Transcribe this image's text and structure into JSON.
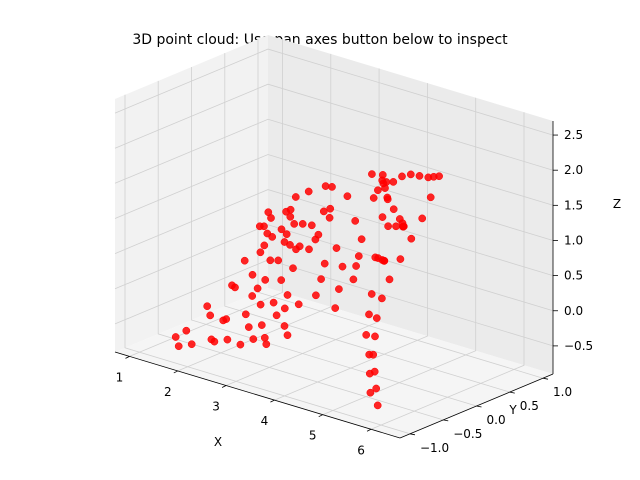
{
  "chart_data": {
    "type": "scatter",
    "title": "3D point cloud: Use pan axes button below to inspect",
    "xlabel": "X",
    "ylabel": "Y",
    "zlabel": "Z",
    "xlim": [
      0.7,
      6.6
    ],
    "ylim": [
      -1.15,
      1.15
    ],
    "zlim": [
      -0.9,
      2.7
    ],
    "x_ticks": [
      "1",
      "2",
      "3",
      "4",
      "5",
      "6"
    ],
    "y_ticks": [
      "−1.0",
      "−0.5",
      "0.0",
      "0.5",
      "1.0"
    ],
    "z_ticks": [
      "−0.5",
      "0.0",
      "0.5",
      "1.0",
      "1.5",
      "2.0",
      "2.5"
    ],
    "marker_color": "#ff0000",
    "grid": true,
    "series": [
      {
        "points": [
          [
            1.05,
            0.9,
            0.35
          ],
          [
            1.1,
            0.8,
            0.2
          ],
          [
            1.2,
            0.85,
            0.05
          ],
          [
            1.3,
            0.6,
            -0.05
          ],
          [
            1.15,
            0.7,
            0.25
          ],
          [
            1.35,
            0.95,
            0.4
          ],
          [
            1.5,
            0.85,
            0.15
          ],
          [
            1.6,
            0.7,
            0.3
          ],
          [
            1.45,
            0.55,
            0.1
          ],
          [
            1.7,
            0.9,
            0.0
          ],
          [
            1.25,
            0.4,
            -0.1
          ],
          [
            1.55,
            0.3,
            -0.2
          ],
          [
            1.8,
            0.6,
            0.2
          ],
          [
            1.65,
            0.45,
            0.35
          ],
          [
            1.9,
            0.8,
            0.4
          ],
          [
            2.0,
            0.6,
            0.5
          ],
          [
            2.1,
            0.75,
            0.1
          ],
          [
            1.85,
            0.35,
            0.05
          ],
          [
            2.2,
            0.9,
            0.6
          ],
          [
            2.05,
            0.5,
            0.25
          ],
          [
            2.3,
            0.7,
            0.3
          ],
          [
            1.95,
            0.2,
            -0.15
          ],
          [
            2.25,
            0.4,
            0.0
          ],
          [
            2.4,
            0.85,
            0.7
          ],
          [
            2.15,
            0.25,
            0.15
          ],
          [
            2.5,
            0.6,
            0.45
          ],
          [
            2.35,
            0.15,
            -0.05
          ],
          [
            2.6,
            0.8,
            0.2
          ],
          [
            2.45,
            0.3,
            0.35
          ],
          [
            2.7,
            0.55,
            0.1
          ],
          [
            1.4,
            0.1,
            -0.3
          ],
          [
            1.6,
            0.0,
            -0.25
          ],
          [
            1.75,
            0.15,
            -0.4
          ],
          [
            2.0,
            0.05,
            -0.2
          ],
          [
            2.2,
            -0.05,
            -0.35
          ],
          [
            2.4,
            0.0,
            -0.3
          ],
          [
            2.55,
            0.1,
            -0.2
          ],
          [
            2.7,
            -0.05,
            -0.3
          ],
          [
            2.85,
            0.05,
            -0.25
          ],
          [
            3.0,
            0.2,
            -0.15
          ],
          [
            1.3,
            -0.2,
            -0.5
          ],
          [
            1.5,
            -0.3,
            -0.55
          ],
          [
            1.7,
            -0.25,
            -0.6
          ],
          [
            1.9,
            -0.35,
            -0.5
          ],
          [
            2.1,
            -0.2,
            -0.45
          ],
          [
            2.3,
            -0.3,
            -0.55
          ],
          [
            2.5,
            -0.25,
            -0.5
          ],
          [
            2.7,
            -0.35,
            -0.6
          ],
          [
            2.9,
            -0.2,
            -0.45
          ],
          [
            3.1,
            -0.3,
            -0.5
          ],
          [
            1.2,
            -0.6,
            -0.8
          ],
          [
            1.4,
            -0.7,
            -0.85
          ],
          [
            1.35,
            -0.55,
            -0.7
          ],
          [
            1.6,
            -0.65,
            -0.8
          ],
          [
            1.8,
            -0.5,
            -0.75
          ],
          [
            2.0,
            -0.6,
            -0.7
          ],
          [
            2.2,
            -0.55,
            -0.65
          ],
          [
            2.4,
            -0.5,
            -0.7
          ],
          [
            2.6,
            -0.45,
            -0.6
          ],
          [
            2.8,
            -0.4,
            -0.65
          ],
          [
            1.55,
            0.95,
            0.65
          ],
          [
            1.75,
            1.0,
            0.75
          ],
          [
            2.1,
            1.0,
            0.9
          ],
          [
            2.3,
            0.95,
            0.95
          ],
          [
            2.55,
            1.0,
            0.85
          ],
          [
            2.85,
            0.9,
            0.6
          ],
          [
            3.05,
            0.85,
            0.4
          ],
          [
            3.2,
            0.7,
            0.25
          ],
          [
            3.35,
            0.55,
            0.2
          ],
          [
            3.5,
            0.4,
            0.1
          ],
          [
            3.25,
            0.95,
            1.1
          ],
          [
            3.5,
            1.0,
            1.25
          ],
          [
            3.75,
            0.95,
            1.4
          ],
          [
            4.0,
            0.9,
            1.5
          ],
          [
            4.25,
            0.85,
            1.55
          ],
          [
            4.5,
            0.8,
            1.6
          ],
          [
            4.75,
            0.7,
            1.7
          ],
          [
            5.0,
            0.6,
            1.8
          ],
          [
            5.1,
            0.4,
            1.6
          ],
          [
            5.2,
            0.2,
            1.4
          ],
          [
            5.25,
            0.0,
            1.2
          ],
          [
            5.3,
            -0.2,
            1.0
          ],
          [
            5.35,
            -0.4,
            0.8
          ],
          [
            5.4,
            -0.55,
            0.6
          ],
          [
            5.5,
            -0.7,
            0.4
          ],
          [
            5.6,
            -0.8,
            0.2
          ],
          [
            5.7,
            -0.9,
            0.0
          ],
          [
            5.8,
            -0.95,
            -0.2
          ],
          [
            5.9,
            -1.0,
            -0.4
          ],
          [
            6.0,
            -1.05,
            -0.6
          ],
          [
            3.6,
            0.85,
            0.7
          ],
          [
            3.9,
            0.75,
            0.8
          ],
          [
            4.2,
            0.65,
            0.9
          ],
          [
            4.4,
            0.5,
            1.0
          ],
          [
            4.6,
            0.35,
            1.1
          ],
          [
            4.8,
            0.2,
            1.2
          ],
          [
            5.0,
            0.05,
            1.35
          ],
          [
            5.15,
            -0.1,
            1.5
          ],
          [
            5.3,
            -0.3,
            1.75
          ],
          [
            5.45,
            -0.5,
            2.0
          ],
          [
            5.6,
            -0.65,
            2.25
          ],
          [
            5.75,
            -0.8,
            2.45
          ],
          [
            5.9,
            -0.9,
            2.6
          ],
          [
            6.05,
            -1.0,
            2.55
          ],
          [
            6.2,
            -1.05,
            2.4
          ],
          [
            5.95,
            -1.1,
            2.7
          ],
          [
            6.25,
            -1.1,
            2.65
          ],
          [
            5.85,
            -1.0,
            2.3
          ],
          [
            6.1,
            -1.05,
            2.1
          ],
          [
            4.1,
            0.4,
            0.5
          ],
          [
            4.35,
            0.25,
            0.6
          ],
          [
            4.55,
            0.1,
            0.7
          ],
          [
            4.7,
            -0.1,
            0.85
          ],
          [
            4.85,
            -0.25,
            0.95
          ],
          [
            5.05,
            -0.45,
            0.55
          ],
          [
            5.2,
            -0.6,
            0.35
          ],
          [
            5.35,
            -0.75,
            0.15
          ],
          [
            5.55,
            -0.85,
            -0.05
          ],
          [
            5.7,
            -0.95,
            -0.25
          ],
          [
            5.85,
            -1.05,
            -0.45
          ],
          [
            3.0,
            0.6,
            0.1
          ],
          [
            3.2,
            0.4,
            -0.1
          ],
          [
            2.9,
            0.35,
            0.0
          ],
          [
            3.4,
            0.2,
            -0.25
          ],
          [
            2.6,
            -0.1,
            -0.4
          ],
          [
            1.85,
            0.65,
            0.55
          ],
          [
            1.95,
            0.9,
            0.35
          ],
          [
            2.25,
            0.95,
            0.5
          ],
          [
            1.65,
            0.8,
            0.55
          ],
          [
            1.45,
            0.65,
            0.45
          ]
        ]
      }
    ]
  }
}
